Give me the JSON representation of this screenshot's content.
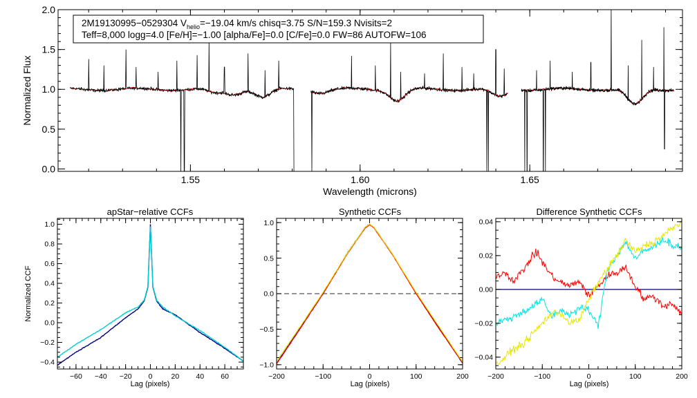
{
  "chart_data": [
    {
      "type": "line",
      "panel": "spectrum",
      "xlabel": "Wavelength (microns)",
      "ylabel": "Normalized Flux",
      "xlim": [
        1.511,
        1.695
      ],
      "ylim": [
        -0.03,
        2.0
      ],
      "xticks": [
        1.55,
        1.6,
        1.65
      ],
      "xtick_labels": [
        "1.55",
        "1.60",
        "1.65"
      ],
      "yticks": [
        0.0,
        0.5,
        1.0,
        1.5,
        2.0
      ],
      "ytick_labels": [
        "0.0",
        "0.5",
        "1.0",
        "1.5",
        "2.0"
      ],
      "annotation_line1_parts": [
        "2M19130995−0529304  V",
        "helio",
        "=−19.04 km/s  chisq=3.75  S/N=159.3  Nvisits=2"
      ],
      "annotation_line2": "Teff=8,000 logg=4.0 [Fe/H]=−1.00 [alpha/Fe]=0.0 [C/Fe]=0.0 FW=86 AUTOFW=106",
      "chips": [
        [
          1.5145,
          1.5805
        ],
        [
          1.5855,
          1.6435
        ],
        [
          1.6475,
          1.6925
        ]
      ],
      "continuum_level": 1.0,
      "absorption_features": [
        {
          "center": 1.557,
          "depth": 0.05
        },
        {
          "center": 1.5625,
          "depth": 0.06
        },
        {
          "center": 1.5715,
          "depth": 0.1
        },
        {
          "center": 1.5885,
          "depth": 0.04
        },
        {
          "center": 1.611,
          "depth": 0.14
        },
        {
          "center": 1.641,
          "depth": 0.1
        },
        {
          "center": 1.681,
          "depth": 0.2
        }
      ],
      "emission_spikes": [
        {
          "x": 1.52,
          "y": 1.38
        },
        {
          "x": 1.5245,
          "y": 1.3
        },
        {
          "x": 1.531,
          "y": 1.5
        },
        {
          "x": 1.534,
          "y": 1.28
        },
        {
          "x": 1.5405,
          "y": 1.22
        },
        {
          "x": 1.546,
          "y": 1.36
        },
        {
          "x": 1.552,
          "y": 1.43
        },
        {
          "x": 1.5555,
          "y": 1.62
        },
        {
          "x": 1.56,
          "y": 1.28
        },
        {
          "x": 1.567,
          "y": 1.45
        },
        {
          "x": 1.572,
          "y": 1.24
        },
        {
          "x": 1.576,
          "y": 1.36
        },
        {
          "x": 1.5975,
          "y": 1.42
        },
        {
          "x": 1.6045,
          "y": 1.3
        },
        {
          "x": 1.609,
          "y": 1.6
        },
        {
          "x": 1.612,
          "y": 1.22
        },
        {
          "x": 1.619,
          "y": 1.2
        },
        {
          "x": 1.6245,
          "y": 1.45
        },
        {
          "x": 1.63,
          "y": 1.28
        },
        {
          "x": 1.6335,
          "y": 1.2
        },
        {
          "x": 1.64,
          "y": 1.5
        },
        {
          "x": 1.6425,
          "y": 1.26
        },
        {
          "x": 1.652,
          "y": 1.24
        },
        {
          "x": 1.656,
          "y": 1.36
        },
        {
          "x": 1.6625,
          "y": 1.22
        },
        {
          "x": 1.668,
          "y": 1.34
        },
        {
          "x": 1.674,
          "y": 2.05
        },
        {
          "x": 1.679,
          "y": 1.3
        },
        {
          "x": 1.683,
          "y": 1.62
        },
        {
          "x": 1.6865,
          "y": 1.28
        },
        {
          "x": 1.6895,
          "y": 1.78
        }
      ],
      "absorption_spikes": [
        {
          "x": 1.5472,
          "y": -0.05
        },
        {
          "x": 1.5482,
          "y": -0.05
        },
        {
          "x": 1.5805,
          "y": -0.05
        },
        {
          "x": 1.5858,
          "y": -0.05
        },
        {
          "x": 1.6373,
          "y": -0.05
        },
        {
          "x": 1.6378,
          "y": -0.05
        },
        {
          "x": 1.6485,
          "y": -0.05
        },
        {
          "x": 1.6492,
          "y": -0.05
        },
        {
          "x": 1.654,
          "y": -0.05
        },
        {
          "x": 1.6546,
          "y": -0.05
        },
        {
          "x": 1.6897,
          "y": 0.25
        }
      ],
      "series": [
        {
          "name": "observed",
          "color": "#000000"
        },
        {
          "name": "model",
          "color": "#ff0000"
        }
      ]
    },
    {
      "type": "line",
      "panel": "apstar_ccf",
      "title": "apStar−relative CCFs",
      "xlabel": "Lag (pixels)",
      "ylabel": "Normalized CCF",
      "xlim": [
        -75,
        75
      ],
      "ylim": [
        -0.47,
        1.06
      ],
      "xticks": [
        -60,
        -40,
        -20,
        0,
        20,
        40,
        60
      ],
      "xtick_labels": [
        "−60",
        "−40",
        "−20",
        "0",
        "20",
        "40",
        "60"
      ],
      "yticks": [
        -0.4,
        -0.2,
        0.0,
        0.2,
        0.4,
        0.6,
        0.8,
        1.0
      ],
      "ytick_labels": [
        "−0.4",
        "−0.2",
        "0.0",
        "0.2",
        "0.4",
        "0.6",
        "0.8",
        "1.0"
      ],
      "series": [
        {
          "name": "ccf1",
          "color": "#000080",
          "x": [
            -75,
            -60,
            -40,
            -20,
            -10,
            -5,
            -2,
            0,
            2,
            5,
            10,
            20,
            40,
            60,
            75
          ],
          "y": [
            -0.43,
            -0.3,
            -0.15,
            0.05,
            0.14,
            0.22,
            0.36,
            1.0,
            0.36,
            0.22,
            0.14,
            0.08,
            -0.1,
            -0.26,
            -0.39
          ]
        },
        {
          "name": "ccf2",
          "color": "#00ced1",
          "x": [
            -75,
            -60,
            -40,
            -20,
            -10,
            -5,
            -2,
            0,
            2,
            5,
            10,
            20,
            40,
            60,
            75
          ],
          "y": [
            -0.35,
            -0.22,
            -0.07,
            0.1,
            0.16,
            0.23,
            0.37,
            0.98,
            0.37,
            0.23,
            0.16,
            0.07,
            -0.08,
            -0.25,
            -0.39
          ]
        }
      ]
    },
    {
      "type": "line",
      "panel": "synthetic_ccf",
      "title": "Synthetic CCFs",
      "xlabel": "Lag (pixels)",
      "xlim": [
        -200,
        200
      ],
      "ylim": [
        -1.06,
        1.06
      ],
      "xticks": [
        -200,
        -100,
        0,
        100,
        200
      ],
      "xtick_labels": [
        "−200",
        "−100",
        "0",
        "100",
        "200"
      ],
      "yticks": [
        -1.0,
        -0.5,
        0.0,
        0.5,
        1.0
      ],
      "ytick_labels": [
        "−1.0",
        "−0.5",
        "0.0",
        "0.5",
        "1.0"
      ],
      "reference_line": {
        "y": 0.0,
        "style": "dashed",
        "color": "#555555"
      },
      "series": [
        {
          "name": "syn1",
          "color": "#000080",
          "x": [
            -200,
            -150,
            -100,
            -50,
            -10,
            0,
            10,
            50,
            100,
            150,
            200
          ],
          "y": [
            -0.98,
            -0.49,
            0.0,
            0.55,
            0.93,
            0.98,
            0.93,
            0.55,
            0.0,
            -0.49,
            -0.98
          ]
        },
        {
          "name": "syn2",
          "color": "#ff0000",
          "x": [
            -200,
            -150,
            -100,
            -50,
            -10,
            0,
            10,
            50,
            100,
            150,
            200
          ],
          "y": [
            -0.99,
            -0.5,
            0.0,
            0.54,
            0.92,
            0.97,
            0.92,
            0.54,
            0.0,
            -0.5,
            -0.97
          ]
        },
        {
          "name": "syn3",
          "color": "#e6e600",
          "x": [
            -200,
            -150,
            -100,
            -50,
            -10,
            0,
            10,
            50,
            100,
            150,
            200
          ],
          "y": [
            -0.95,
            -0.47,
            0.02,
            0.55,
            0.93,
            0.98,
            0.93,
            0.55,
            0.02,
            -0.47,
            -0.96
          ]
        }
      ]
    },
    {
      "type": "line",
      "panel": "difference_ccf",
      "title": "Difference Synthetic CCFs",
      "xlabel": "Lag (pixels)",
      "xlim": [
        -200,
        200
      ],
      "ylim": [
        -0.047,
        0.042
      ],
      "xticks": [
        -200,
        -100,
        0,
        100,
        200
      ],
      "xtick_labels": [
        "−200",
        "−100",
        "0",
        "100",
        "200"
      ],
      "yticks": [
        -0.04,
        -0.02,
        0.0,
        0.02,
        0.04
      ],
      "ytick_labels": [
        "−0.04",
        "−0.02",
        "0.00",
        "0.02",
        "0.04"
      ],
      "reference_line": {
        "y": 0.0,
        "style": "solid",
        "color": "#000080"
      },
      "series": [
        {
          "name": "diff_red",
          "color": "#ff0000",
          "x": [
            -200,
            -180,
            -160,
            -140,
            -120,
            -110,
            -100,
            -80,
            -60,
            -40,
            -20,
            0,
            20,
            40,
            60,
            80,
            100,
            120,
            140,
            160,
            180,
            200
          ],
          "y": [
            0.008,
            0.01,
            0.005,
            0.012,
            0.02,
            0.022,
            0.016,
            0.008,
            0.004,
            0.002,
            0.005,
            -0.004,
            0.002,
            0.008,
            0.01,
            0.013,
            0.002,
            -0.006,
            -0.004,
            -0.01,
            -0.008,
            -0.015
          ]
        },
        {
          "name": "diff_cyan",
          "color": "#00e5e5",
          "x": [
            -200,
            -180,
            -160,
            -140,
            -120,
            -100,
            -80,
            -60,
            -40,
            -20,
            0,
            20,
            40,
            60,
            80,
            100,
            120,
            140,
            160,
            180,
            200
          ],
          "y": [
            -0.02,
            -0.018,
            -0.016,
            -0.013,
            -0.01,
            -0.006,
            -0.016,
            -0.012,
            -0.015,
            -0.011,
            -0.012,
            -0.022,
            0.012,
            0.02,
            0.028,
            0.018,
            0.023,
            0.025,
            0.03,
            0.026,
            0.025
          ]
        },
        {
          "name": "diff_yellow",
          "color": "#e6e600",
          "x": [
            -200,
            -180,
            -160,
            -140,
            -120,
            -100,
            -80,
            -60,
            -40,
            -20,
            0,
            20,
            40,
            60,
            80,
            100,
            120,
            140,
            160,
            180,
            200
          ],
          "y": [
            -0.045,
            -0.04,
            -0.035,
            -0.032,
            -0.026,
            -0.02,
            -0.014,
            -0.014,
            -0.02,
            -0.018,
            -0.006,
            0.004,
            0.012,
            0.02,
            0.029,
            0.022,
            0.026,
            0.028,
            0.032,
            0.036,
            0.04
          ]
        }
      ]
    }
  ]
}
